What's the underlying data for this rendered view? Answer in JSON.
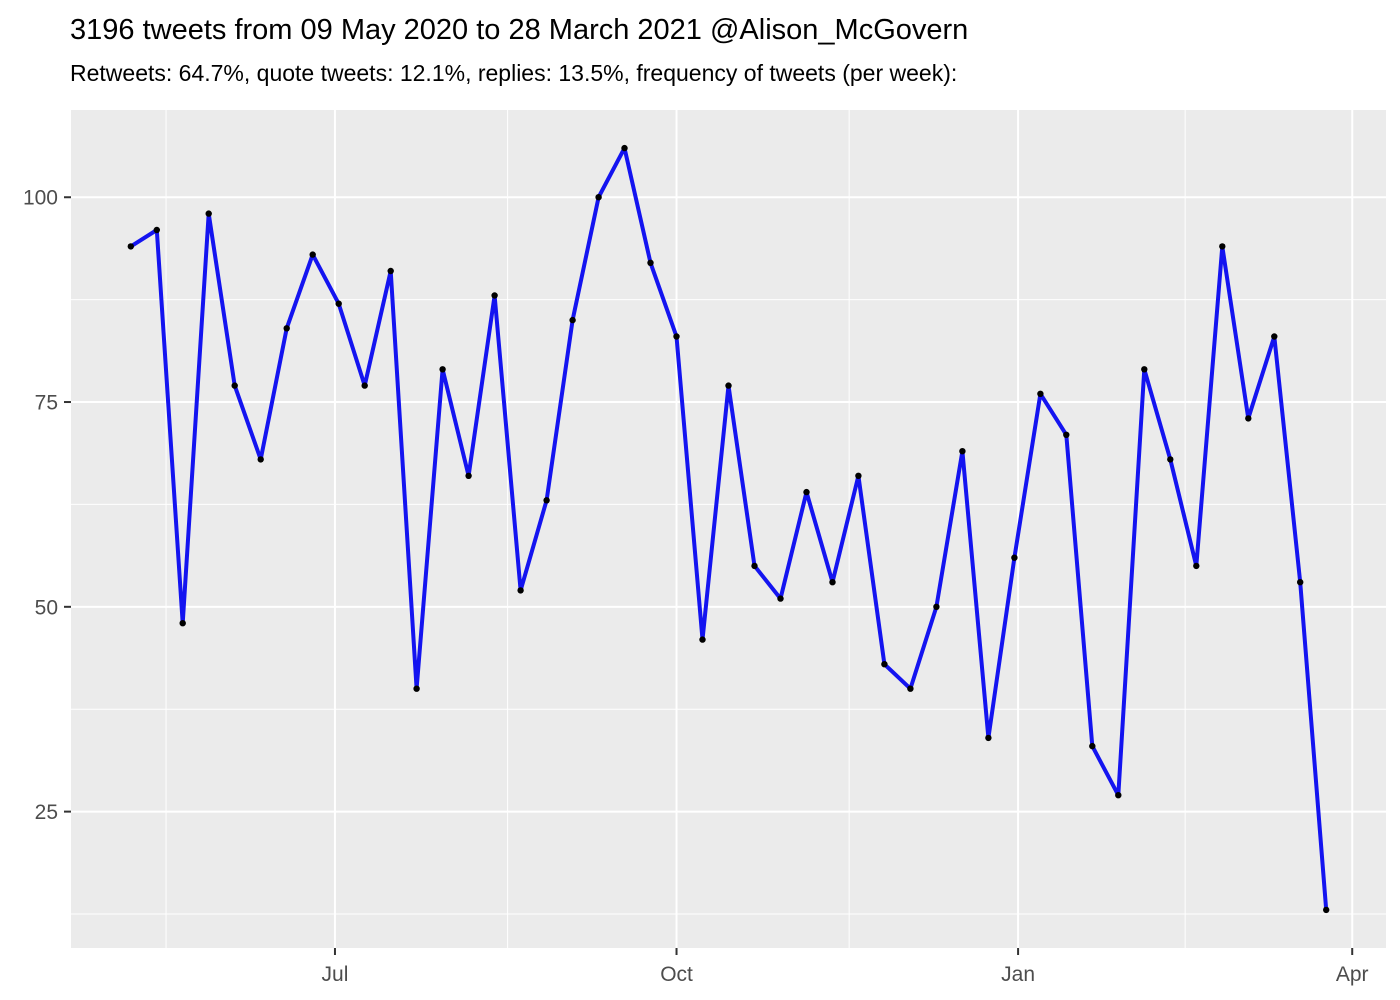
{
  "title": "3196 tweets from 09 May 2020 to 28 March 2021 @Alison_McGovern",
  "subtitle": "Retweets: 64.7%, quote tweets: 12.1%, replies: 13.5%, frequency of tweets (per week):",
  "chart_data": {
    "type": "line",
    "title": "3196 tweets from 09 May 2020 to 28 March 2021 @Alison_McGovern",
    "subtitle": "Retweets: 64.7%, quote tweets: 12.1%, replies: 13.5%, frequency of tweets (per week):",
    "xlabel": "",
    "ylabel": "",
    "legend": "none",
    "grid": true,
    "series_name": "tweets-per-week",
    "total_tweets": 3196,
    "x_week_starting": [
      "2020-05-09",
      "2020-05-16",
      "2020-05-23",
      "2020-05-30",
      "2020-06-06",
      "2020-06-13",
      "2020-06-20",
      "2020-06-27",
      "2020-07-04",
      "2020-07-11",
      "2020-07-18",
      "2020-07-25",
      "2020-08-01",
      "2020-08-08",
      "2020-08-15",
      "2020-08-22",
      "2020-08-29",
      "2020-09-05",
      "2020-09-12",
      "2020-09-19",
      "2020-09-26",
      "2020-10-03",
      "2020-10-10",
      "2020-10-17",
      "2020-10-24",
      "2020-10-31",
      "2020-11-07",
      "2020-11-14",
      "2020-11-21",
      "2020-11-28",
      "2020-12-05",
      "2020-12-12",
      "2020-12-19",
      "2020-12-26",
      "2021-01-02",
      "2021-01-09",
      "2021-01-16",
      "2021-01-23",
      "2021-01-30",
      "2021-02-06",
      "2021-02-13",
      "2021-02-20",
      "2021-02-27",
      "2021-03-06",
      "2021-03-13",
      "2021-03-20",
      "2021-03-27"
    ],
    "values": [
      94,
      96,
      48,
      98,
      77,
      68,
      84,
      93,
      87,
      77,
      91,
      40,
      79,
      66,
      88,
      52,
      63,
      85,
      100,
      106,
      92,
      83,
      46,
      77,
      55,
      51,
      64,
      53,
      66,
      43,
      40,
      50,
      69,
      34,
      56,
      76,
      71,
      33,
      27,
      79,
      68,
      55,
      94,
      73,
      83,
      53,
      13
    ],
    "point_interval_days": 7,
    "xlim_days": [
      -16.1,
      338.1
    ],
    "ylim": [
      8.35,
      110.65
    ],
    "y_ticks": [
      25,
      50,
      75,
      100
    ],
    "y_minor_ticks": [
      12.5,
      37.5,
      62.5,
      87.5
    ],
    "x_ticks": [
      {
        "label": "Jul",
        "day": 55
      },
      {
        "label": "Oct",
        "day": 147
      },
      {
        "label": "Jan",
        "day": 239
      },
      {
        "label": "Apr",
        "day": 329
      }
    ],
    "x_minor_tick_days": [
      9.5,
      101.5,
      193.5,
      284
    ],
    "colors": {
      "line": "#1414F0",
      "point": "#000000",
      "panel_bg": "#EBEBEB",
      "grid_major": "#FFFFFF",
      "grid_minor": "#FFFFFF",
      "axis_text": "#4D4D4D",
      "tick_mark": "#333333",
      "title_text": "#000000",
      "background": "#FFFFFF"
    }
  }
}
